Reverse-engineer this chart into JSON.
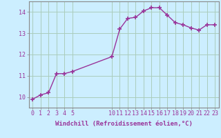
{
  "x": [
    0,
    1,
    2,
    3,
    4,
    5,
    10,
    11,
    12,
    13,
    14,
    15,
    16,
    17,
    18,
    19,
    20,
    21,
    22,
    23
  ],
  "y": [
    9.9,
    10.1,
    10.2,
    11.1,
    11.1,
    11.2,
    11.9,
    13.2,
    13.7,
    13.75,
    14.05,
    14.2,
    14.2,
    13.85,
    13.5,
    13.4,
    13.25,
    13.15,
    13.4,
    13.4
  ],
  "line_color": "#993399",
  "marker": "+",
  "marker_size": 4,
  "bg_color": "#cceeff",
  "grid_color": "#aaccbb",
  "xlabel": "Windchill (Refroidissement éolien,°C)",
  "xlabel_color": "#993399",
  "tick_color": "#993399",
  "axis_color": "#888888",
  "xlim": [
    -0.5,
    23.5
  ],
  "ylim": [
    9.5,
    14.5
  ],
  "yticks": [
    10,
    11,
    12,
    13,
    14
  ],
  "xticks": [
    0,
    1,
    2,
    3,
    4,
    5,
    10,
    11,
    12,
    13,
    14,
    15,
    16,
    17,
    18,
    19,
    20,
    21,
    22,
    23
  ],
  "xlabel_fontsize": 6.5,
  "tick_fontsize": 6.0
}
